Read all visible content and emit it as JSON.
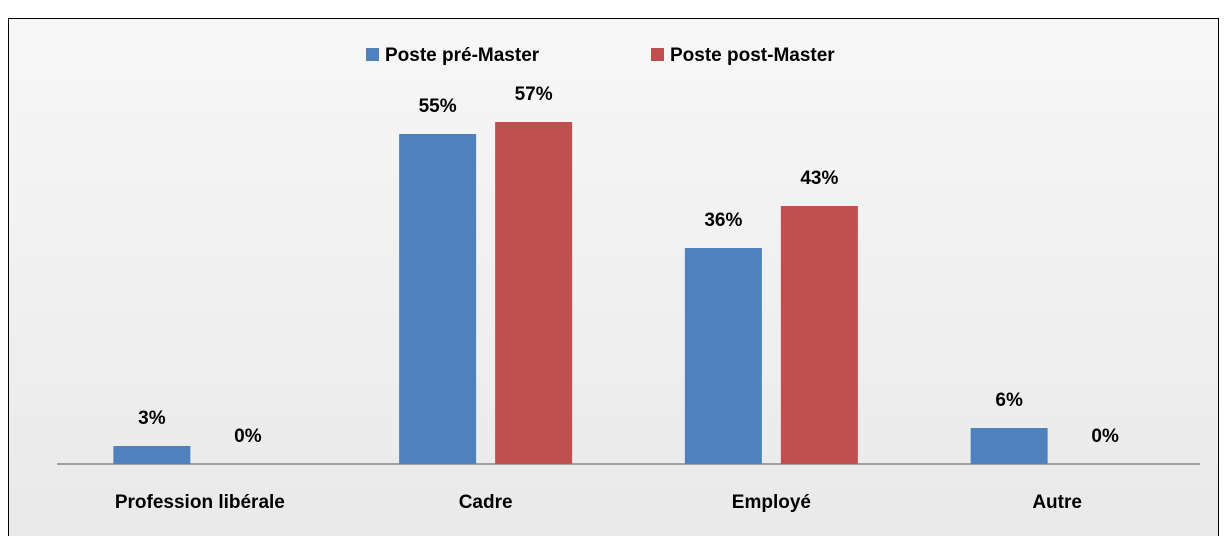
{
  "chart_data": {
    "type": "bar",
    "categories": [
      "Profession libérale",
      "Cadre",
      "Employé",
      "Autre"
    ],
    "series": [
      {
        "name": "Poste pré-Master",
        "color": "#4f81bd",
        "values": [
          3,
          55,
          36,
          6
        ],
        "value_labels": [
          "3%",
          "55%",
          "36%",
          "6%"
        ]
      },
      {
        "name": "Poste post-Master",
        "color": "#c0504d",
        "values": [
          0,
          57,
          43,
          0
        ],
        "value_labels": [
          "0%",
          "57%",
          "43%",
          "0%"
        ]
      }
    ],
    "legend": "top"
  }
}
